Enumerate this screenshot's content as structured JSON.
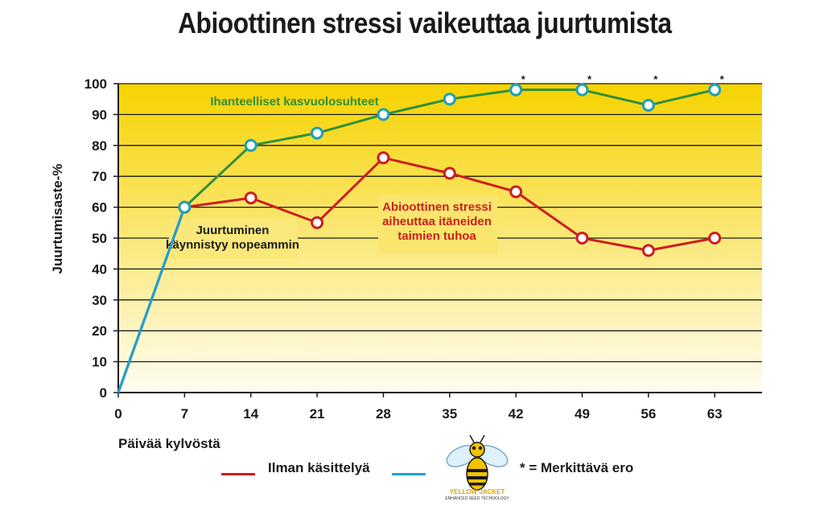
{
  "chart_data": {
    "type": "line",
    "title": "Abioottinen stressi vaikeuttaa juurtumista",
    "xlabel": "Päivää kylvöstä",
    "ylabel": "Juurtumisaste-%",
    "x": [
      0,
      7,
      14,
      21,
      28,
      35,
      42,
      49,
      56,
      63
    ],
    "x_ticks": [
      "0",
      "7",
      "14",
      "21",
      "28",
      "35",
      "42",
      "49",
      "56",
      "63"
    ],
    "xlim": [
      0,
      68
    ],
    "y_ticks": [
      "0",
      "10",
      "20",
      "30",
      "40",
      "50",
      "60",
      "70",
      "80",
      "90",
      "100"
    ],
    "ylim": [
      0,
      100
    ],
    "grid": "horizontal",
    "series": [
      {
        "name": "Ilman käsittelyä",
        "color": "#cc1f1f",
        "values": [
          0,
          60,
          63,
          55,
          76,
          71,
          65,
          50,
          46,
          50
        ]
      },
      {
        "color": "#2f8f3a",
        "line_color_in_legend": "#1fa0d8",
        "values": [
          0,
          60,
          80,
          84,
          90,
          95,
          98,
          98,
          93,
          98
        ]
      }
    ],
    "significance_marker": "*",
    "significant_x": [
      42,
      49,
      56,
      63
    ],
    "annotations": {
      "ideal": "Ihanteelliset kasvuolosuhteet",
      "faster": [
        "Juurtuminen",
        "käynnistyy nopeammin"
      ],
      "stress": [
        "Abioottinen stressi",
        "aiheuttaa itäneiden",
        "taimien tuhoa"
      ]
    },
    "colors": {
      "background_top": "#f6d300",
      "background_bottom": "#fffdf2",
      "gridline": "#1a1a1a",
      "ideal_text": "#2f8f3a",
      "stress_text": "#cc1f1f",
      "marker_fill": "#ffffff",
      "marker_stroke": "#1f9fb8"
    }
  },
  "legend": {
    "red_label": "Ilman käsittelyä",
    "sig_label": "* = Merkittävä ero",
    "logo_text": "YELLOW JACKET",
    "logo_subtext": "ENHANCED SEED TECHNOLOGY"
  }
}
